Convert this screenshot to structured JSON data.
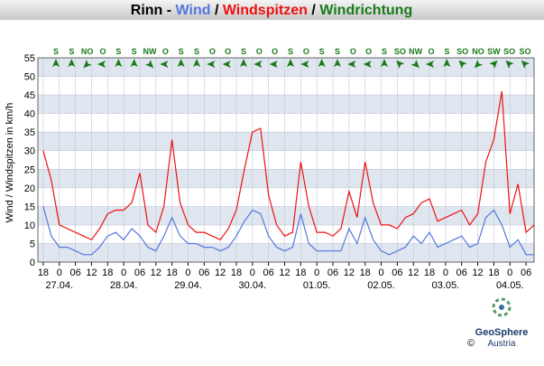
{
  "chart_data": {
    "type": "line",
    "title": "Rinn",
    "title_separators": [
      " - ",
      " / ",
      " / "
    ],
    "direction_title": "Windrichtung",
    "direction_color": "#1a7a1a",
    "y_label": "Wind / Windspitzen in km/h",
    "xlim": [
      -2,
      183
    ],
    "ylim": [
      0,
      55
    ],
    "yticks": [
      0,
      5,
      10,
      15,
      20,
      25,
      30,
      35,
      40,
      45,
      50,
      55
    ],
    "xticks": [
      {
        "value": 0,
        "label": "18"
      },
      {
        "value": 6,
        "label": "0"
      },
      {
        "value": 12,
        "label": "06"
      },
      {
        "value": 18,
        "label": "12"
      },
      {
        "value": 24,
        "label": "18"
      },
      {
        "value": 30,
        "label": "0"
      },
      {
        "value": 36,
        "label": "06"
      },
      {
        "value": 42,
        "label": "12"
      },
      {
        "value": 48,
        "label": "18"
      },
      {
        "value": 54,
        "label": "0"
      },
      {
        "value": 60,
        "label": "06"
      },
      {
        "value": 66,
        "label": "12"
      },
      {
        "value": 72,
        "label": "18"
      },
      {
        "value": 78,
        "label": "0"
      },
      {
        "value": 84,
        "label": "06"
      },
      {
        "value": 90,
        "label": "12"
      },
      {
        "value": 96,
        "label": "18"
      },
      {
        "value": 102,
        "label": "0"
      },
      {
        "value": 108,
        "label": "06"
      },
      {
        "value": 114,
        "label": "12"
      },
      {
        "value": 120,
        "label": "18"
      },
      {
        "value": 126,
        "label": "0"
      },
      {
        "value": 132,
        "label": "06"
      },
      {
        "value": 138,
        "label": "12"
      },
      {
        "value": 144,
        "label": "18"
      },
      {
        "value": 150,
        "label": "0"
      },
      {
        "value": 156,
        "label": "06"
      },
      {
        "value": 162,
        "label": "12"
      },
      {
        "value": 168,
        "label": "18"
      },
      {
        "value": 174,
        "label": "0"
      },
      {
        "value": 180,
        "label": "06"
      }
    ],
    "date_ticks": [
      {
        "value": 6,
        "label": "27.04."
      },
      {
        "value": 30,
        "label": "28.04."
      },
      {
        "value": 54,
        "label": "29.04."
      },
      {
        "value": 78,
        "label": "30.04."
      },
      {
        "value": 102,
        "label": "01.05."
      },
      {
        "value": 126,
        "label": "02.05."
      },
      {
        "value": 150,
        "label": "03.05."
      },
      {
        "value": 174,
        "label": "04.05."
      }
    ],
    "x": [
      0,
      3,
      6,
      9,
      12,
      15,
      18,
      21,
      24,
      27,
      30,
      33,
      36,
      39,
      42,
      45,
      48,
      51,
      54,
      57,
      60,
      63,
      66,
      69,
      72,
      75,
      78,
      81,
      84,
      87,
      90,
      93,
      96,
      99,
      102,
      105,
      108,
      111,
      114,
      117,
      120,
      123,
      126,
      129,
      132,
      135,
      138,
      141,
      144,
      147,
      150,
      153,
      156,
      159,
      162,
      165,
      168,
      171,
      174,
      177,
      180,
      183
    ],
    "series": [
      {
        "name": "Wind",
        "color": "#5577dd",
        "values": [
          15,
          7,
          4,
          4,
          3,
          2,
          2,
          4,
          7,
          8,
          6,
          9,
          7,
          4,
          3,
          7,
          12,
          7,
          5,
          5,
          4,
          4,
          3,
          4,
          7,
          11,
          14,
          13,
          7,
          4,
          3,
          4,
          13,
          5,
          3,
          3,
          3,
          3,
          9,
          5,
          12,
          6,
          3,
          2,
          3,
          4,
          7,
          5,
          8,
          4,
          5,
          6,
          7,
          4,
          5,
          12,
          14,
          10,
          4,
          6,
          2,
          2
        ]
      },
      {
        "name": "Windspitzen",
        "color": "#ee1111",
        "values": [
          30,
          22,
          10,
          9,
          8,
          7,
          6,
          9,
          13,
          14,
          14,
          16,
          24,
          10,
          8,
          15,
          33,
          16,
          10,
          8,
          8,
          7,
          6,
          9,
          14,
          25,
          35,
          36,
          18,
          10,
          7,
          8,
          27,
          15,
          8,
          8,
          7,
          9,
          19,
          12,
          27,
          16,
          10,
          10,
          9,
          12,
          13,
          16,
          17,
          11,
          12,
          13,
          14,
          10,
          13,
          27,
          33,
          46,
          13,
          21,
          8,
          10
        ]
      }
    ],
    "wind_direction": [
      {
        "label": "S",
        "angle": 180
      },
      {
        "label": "S",
        "angle": 180
      },
      {
        "label": "NO",
        "angle": 45
      },
      {
        "label": "O",
        "angle": 90
      },
      {
        "label": "S",
        "angle": 180
      },
      {
        "label": "S",
        "angle": 180
      },
      {
        "label": "NW",
        "angle": 315
      },
      {
        "label": "O",
        "angle": 90
      },
      {
        "label": "S",
        "angle": 180
      },
      {
        "label": "S",
        "angle": 180
      },
      {
        "label": "O",
        "angle": 90
      },
      {
        "label": "O",
        "angle": 90
      },
      {
        "label": "S",
        "angle": 180
      },
      {
        "label": "O",
        "angle": 90
      },
      {
        "label": "O",
        "angle": 90
      },
      {
        "label": "S",
        "angle": 180
      },
      {
        "label": "O",
        "angle": 90
      },
      {
        "label": "S",
        "angle": 180
      },
      {
        "label": "S",
        "angle": 180
      },
      {
        "label": "O",
        "angle": 90
      },
      {
        "label": "O",
        "angle": 90
      },
      {
        "label": "S",
        "angle": 180
      },
      {
        "label": "SO",
        "angle": 135
      },
      {
        "label": "NW",
        "angle": 315
      },
      {
        "label": "O",
        "angle": 90
      },
      {
        "label": "S",
        "angle": 180
      },
      {
        "label": "SO",
        "angle": 135
      },
      {
        "label": "NO",
        "angle": 45
      },
      {
        "label": "SW",
        "angle": 225
      },
      {
        "label": "SO",
        "angle": 135
      },
      {
        "label": "SO",
        "angle": 135
      }
    ],
    "logo": {
      "name": "GeoSphere",
      "sub": "Austria",
      "copyright": "©"
    }
  }
}
